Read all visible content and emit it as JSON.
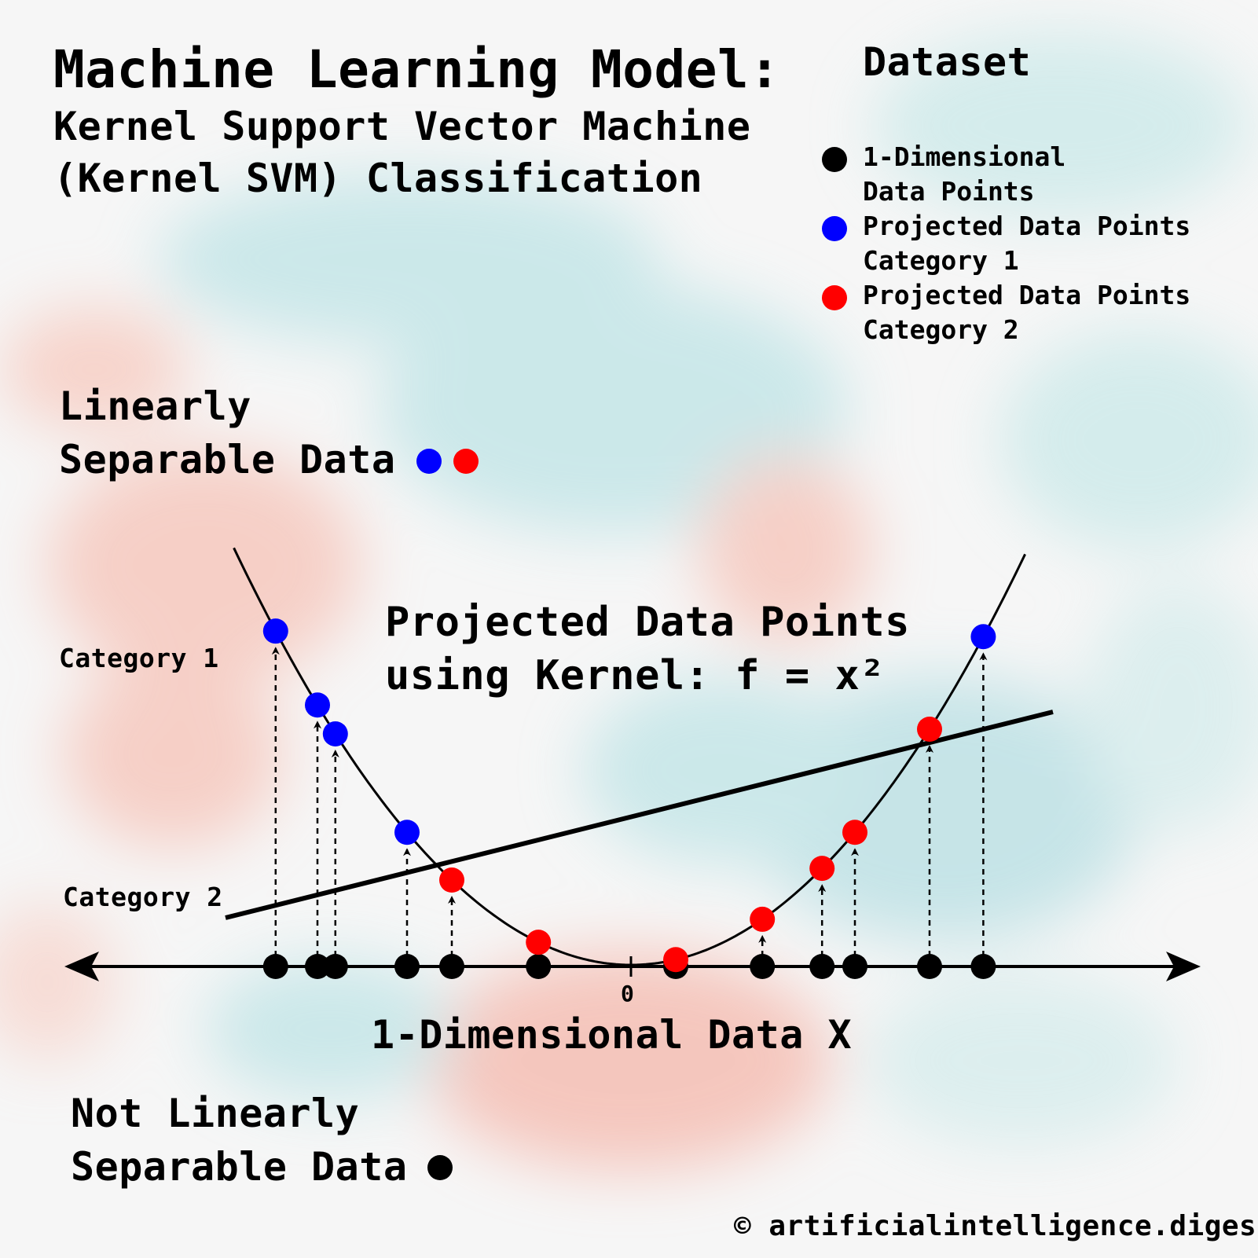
{
  "title": "Machine Learning Model:",
  "subtitle_line1": "Kernel Support Vector Machine",
  "subtitle_line2": "(Kernel SVM) Classification",
  "legend": {
    "title": "Dataset",
    "items": [
      {
        "line1": "1-Dimensional",
        "line2": "Data Points",
        "color": "#000000"
      },
      {
        "line1": "Projected Data Points",
        "line2": "Category 1",
        "color": "#0000ff"
      },
      {
        "line1": "Projected Data Points",
        "line2": "Category 2",
        "color": "#ff0000"
      }
    ]
  },
  "linearly_separable": {
    "line1": "Linearly",
    "line2": "Separable Data"
  },
  "projection_label": {
    "line1": "Projected Data Points",
    "line2": "using Kernel: f = x²"
  },
  "category1_label": "Category 1",
  "category2_label": "Category 2",
  "axis": {
    "label": "1-Dimensional Data X",
    "zero_tick": "0"
  },
  "not_linearly_separable": {
    "line1": "Not Linearly",
    "line2": "Separable Data"
  },
  "credit": "© artificialintelligence.digest",
  "colors": {
    "category1": "#0000ff",
    "category2": "#ff0000",
    "data": "#000000"
  },
  "data_points": [
    {
      "x": -11.9,
      "category": 1
    },
    {
      "x": -10.5,
      "category": 1
    },
    {
      "x": -9.9,
      "category": 1
    },
    {
      "x": -7.5,
      "category": 1
    },
    {
      "x": -6.0,
      "category": 2
    },
    {
      "x": -3.1,
      "category": 2
    },
    {
      "x": 1.5,
      "category": 2
    },
    {
      "x": 4.4,
      "category": 2
    },
    {
      "x": 6.4,
      "category": 2
    },
    {
      "x": 7.5,
      "category": 2
    },
    {
      "x": 10.0,
      "category": 2
    },
    {
      "x": 11.8,
      "category": 1
    }
  ]
}
